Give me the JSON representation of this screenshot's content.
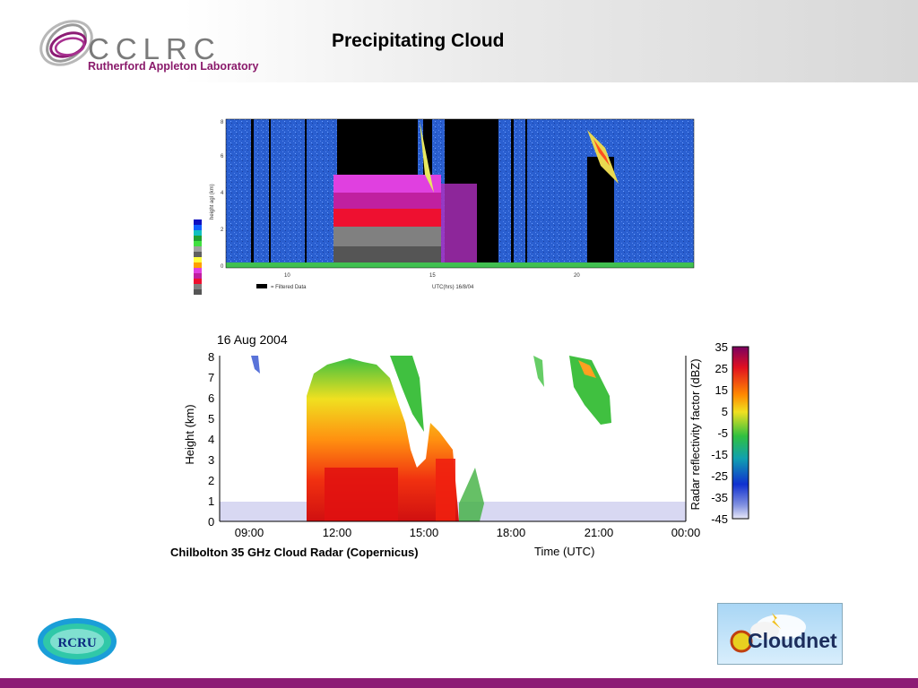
{
  "header": {
    "org_name": "CCLRC",
    "org_sub": "Rutherford Appleton Laboratory",
    "title": "Precipitating Cloud"
  },
  "plot1": {
    "legend_note": "= Filtered Data",
    "xlabel": "UTC(hrs) 16/8/04",
    "ylabel": "height agl (km)",
    "x_ticks": [
      "10",
      "15",
      "20"
    ],
    "y_ticks": [
      "0",
      "2",
      "4",
      "6",
      "8"
    ]
  },
  "plot2": {
    "date": "16 Aug 2004",
    "caption": "Chilbolton 35 GHz Cloud Radar (Copernicus)",
    "xlabel": "Time (UTC)",
    "ylabel": "Height (km)",
    "colorbar_label": "Radar reflectivity factor (dBZ)",
    "x_ticks": [
      "09:00",
      "12:00",
      "15:00",
      "18:00",
      "21:00",
      "00:00"
    ],
    "y_ticks": [
      "0",
      "1",
      "2",
      "3",
      "4",
      "5",
      "6",
      "7",
      "8"
    ],
    "colorbar_ticks": [
      "35",
      "25",
      "15",
      "5",
      "-5",
      "-15",
      "-25",
      "-35",
      "-45"
    ]
  },
  "logos": {
    "rcru": "RCRU",
    "cloudnet": "Cloudnet"
  },
  "colors": {
    "accent": "#8c1c74",
    "radar_background": "#2255cc"
  }
}
